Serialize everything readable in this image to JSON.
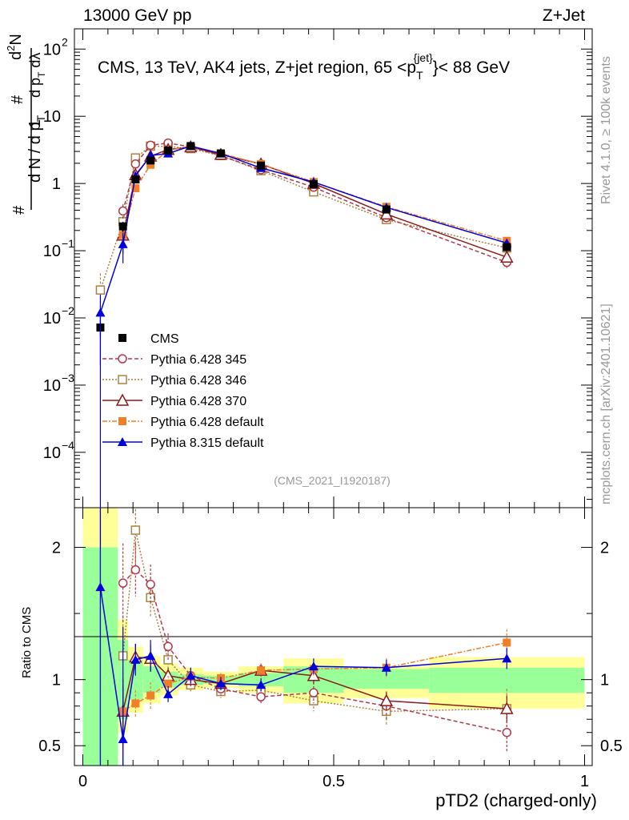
{
  "header": {
    "left": "13000 GeV pp",
    "right": "Z+Jet",
    "plot_title": "CMS, 13 TeV, AK4 jets, Z+jet region, 65 <p",
    "plot_title_sup": "{jet}",
    "plot_title_sub": "T",
    "plot_title_end": "}< 88 GeV"
  },
  "side_labels": {
    "rivet": "Rivet 4.1.0, ≥ 100k events",
    "mcplots": "mcplots.cern.ch [arXiv:2401.10621]"
  },
  "analysis_id": "(CMS_2021_I1920187)",
  "ylabel_main": "1/N dN/dpT dλ",
  "ylabel_ratio": "Ratio to CMS",
  "xlabel": "pTD2 (charged-only)",
  "colors": {
    "cms": "#000000",
    "p345": "#b0394a",
    "p346": "#a88442",
    "p370": "#8b1a1a",
    "pdef": "#f07f2a",
    "p8": "#0000dd",
    "band_inner": "#99ff99",
    "band_outer": "#ffff99"
  },
  "chart_data": {
    "type": "line",
    "x": [
      0.035,
      0.08,
      0.105,
      0.135,
      0.17,
      0.215,
      0.275,
      0.355,
      0.46,
      0.605,
      0.845
    ],
    "xlim": [
      -0.02,
      1.0
    ],
    "ylim_main": [
      1.5e-05,
      200
    ],
    "yscale_main": "log",
    "ylim_ratio": [
      0.35,
      2.3
    ],
    "xticks": [
      0,
      0.5,
      1
    ],
    "xtick_labels": [
      "0",
      "0.5",
      "1"
    ],
    "main_ticks": [
      {
        "v": 0.0001,
        "label": "10",
        "exp": "−4"
      },
      {
        "v": 0.001,
        "label": "10",
        "exp": "−3"
      },
      {
        "v": 0.01,
        "label": "10",
        "exp": "−2"
      },
      {
        "v": 0.1,
        "label": "10",
        "exp": "−1"
      },
      {
        "v": 1,
        "label": "1",
        "exp": ""
      },
      {
        "v": 10,
        "label": "10",
        "exp": ""
      },
      {
        "v": 100,
        "label": "10",
        "exp": "2"
      }
    ],
    "ratio_ticks": [
      {
        "v": 0.5,
        "label": "0.5"
      },
      {
        "v": 1,
        "label": "1"
      },
      {
        "v": 2,
        "label": "2"
      }
    ],
    "bands": [
      {
        "x0": 0.0,
        "x1": 0.07,
        "in_lo": 0.35,
        "in_hi": 2.0,
        "out_lo": 0.35,
        "out_hi": 2.3
      },
      {
        "x0": 0.07,
        "x1": 0.09,
        "in_lo": 0.7,
        "in_hi": 1.3,
        "out_lo": 0.6,
        "out_hi": 1.45
      },
      {
        "x0": 0.09,
        "x1": 0.12,
        "in_lo": 0.85,
        "in_hi": 1.15,
        "out_lo": 0.75,
        "out_hi": 1.25
      },
      {
        "x0": 0.12,
        "x1": 0.155,
        "in_lo": 0.9,
        "in_hi": 1.1,
        "out_lo": 0.82,
        "out_hi": 1.18
      },
      {
        "x0": 0.155,
        "x1": 0.19,
        "in_lo": 0.94,
        "in_hi": 1.06,
        "out_lo": 0.88,
        "out_hi": 1.12
      },
      {
        "x0": 0.19,
        "x1": 0.24,
        "in_lo": 0.96,
        "in_hi": 1.04,
        "out_lo": 0.92,
        "out_hi": 1.09
      },
      {
        "x0": 0.24,
        "x1": 0.31,
        "in_lo": 0.97,
        "in_hi": 1.03,
        "out_lo": 0.94,
        "out_hi": 1.06
      },
      {
        "x0": 0.31,
        "x1": 0.4,
        "in_lo": 0.95,
        "in_hi": 1.05,
        "out_lo": 0.9,
        "out_hi": 1.1
      },
      {
        "x0": 0.4,
        "x1": 0.52,
        "in_lo": 0.9,
        "in_hi": 1.1,
        "out_lo": 0.82,
        "out_hi": 1.16
      },
      {
        "x0": 0.52,
        "x1": 0.69,
        "in_lo": 0.93,
        "in_hi": 1.08,
        "out_lo": 0.86,
        "out_hi": 1.1
      },
      {
        "x0": 0.69,
        "x1": 1.0,
        "in_lo": 0.9,
        "in_hi": 1.09,
        "out_lo": 0.78,
        "out_hi": 1.17
      }
    ],
    "series": [
      {
        "name": "CMS",
        "key": "cms",
        "marker": "square",
        "dash": "none",
        "main": [
          0.0072,
          0.23,
          1.15,
          2.2,
          3.1,
          3.6,
          2.8,
          1.85,
          0.98,
          0.41,
          0.113
        ],
        "main_err": [
          0.002,
          0.04,
          0.12,
          0.15,
          0.15,
          0.15,
          0.1,
          0.08,
          0.05,
          0.03,
          0.015
        ],
        "ratio": [],
        "ratio_err": []
      },
      {
        "name": "Pythia 6.428 345",
        "key": "p345",
        "marker": "circle-open",
        "dash": "5,3",
        "main": [
          null,
          0.39,
          1.95,
          3.7,
          4.0,
          3.5,
          2.6,
          1.6,
          0.88,
          0.31,
          0.067
        ],
        "main_err": [
          null,
          0.1,
          0.2,
          0.2,
          0.2,
          0.15,
          0.1,
          0.07,
          0.05,
          0.03,
          0.012
        ],
        "ratio": [
          null,
          1.73,
          1.83,
          1.72,
          1.25,
          1.03,
          0.93,
          0.87,
          0.9,
          0.8,
          0.6
        ],
        "ratio_err": [
          null,
          0.3,
          0.2,
          0.15,
          0.1,
          0.06,
          0.05,
          0.06,
          0.08,
          0.1,
          0.15
        ]
      },
      {
        "name": "Pythia 6.428 346",
        "key": "p346",
        "marker": "square-open",
        "dash": "2,2",
        "main": [
          0.026,
          0.27,
          2.4,
          3.6,
          3.55,
          3.3,
          2.6,
          1.55,
          0.75,
          0.29,
          0.11
        ],
        "main_err": [
          0.02,
          0.1,
          0.2,
          0.2,
          0.2,
          0.15,
          0.1,
          0.07,
          0.05,
          0.03,
          0.015
        ],
        "ratio": [
          null,
          1.18,
          2.13,
          1.62,
          1.15,
          0.96,
          0.91,
          0.92,
          0.84,
          0.76,
          0.78
        ],
        "ratio_err": [
          null,
          0.3,
          0.25,
          0.15,
          0.1,
          0.06,
          0.05,
          0.06,
          0.08,
          0.1,
          0.15
        ]
      },
      {
        "name": "Pythia 6.428 370",
        "key": "p370",
        "marker": "triangle-open",
        "dash": "none",
        "main": [
          null,
          0.17,
          1.35,
          2.55,
          3.2,
          3.5,
          2.7,
          1.95,
          1.0,
          0.35,
          0.08
        ],
        "main_err": [
          null,
          0.08,
          0.15,
          0.15,
          0.15,
          0.15,
          0.1,
          0.08,
          0.05,
          0.03,
          0.012
        ],
        "ratio": [
          null,
          0.76,
          1.17,
          1.16,
          1.03,
          1.0,
          0.97,
          1.07,
          1.03,
          0.84,
          0.78
        ],
        "ratio_err": [
          null,
          0.25,
          0.1,
          0.1,
          0.06,
          0.05,
          0.04,
          0.05,
          0.06,
          0.07,
          0.1
        ]
      },
      {
        "name": "Pythia 6.428 default",
        "key": "pdef",
        "marker": "square",
        "dash": "6,2,2,2",
        "main": [
          null,
          0.17,
          0.85,
          1.9,
          3.1,
          3.6,
          2.8,
          1.95,
          1.05,
          0.45,
          0.14
        ],
        "main_err": [
          null,
          0.08,
          0.1,
          0.1,
          0.15,
          0.15,
          0.1,
          0.08,
          0.05,
          0.03,
          0.015
        ],
        "ratio": [
          null,
          0.76,
          0.82,
          0.88,
          0.97,
          1.02,
          1.01,
          1.07,
          1.08,
          1.09,
          1.28
        ],
        "ratio_err": [
          null,
          0.25,
          0.1,
          0.1,
          0.06,
          0.05,
          0.04,
          0.05,
          0.06,
          0.07,
          0.1
        ]
      },
      {
        "name": "Pythia 8.315 default",
        "key": "p8",
        "marker": "triangle",
        "dash": "none",
        "main": [
          0.012,
          0.125,
          1.3,
          2.6,
          2.8,
          3.6,
          2.8,
          1.7,
          1.05,
          0.44,
          0.13
        ],
        "main_err": [
          0.01,
          0.06,
          0.15,
          0.2,
          0.2,
          0.15,
          0.1,
          0.08,
          0.06,
          0.03,
          0.015
        ],
        "ratio": [
          1.7,
          0.55,
          1.15,
          1.18,
          0.89,
          1.03,
          0.97,
          0.96,
          1.1,
          1.09,
          1.16
        ],
        "ratio_err": [
          1.5,
          0.4,
          0.12,
          0.12,
          0.06,
          0.06,
          0.05,
          0.05,
          0.06,
          0.06,
          0.08
        ]
      }
    ]
  }
}
